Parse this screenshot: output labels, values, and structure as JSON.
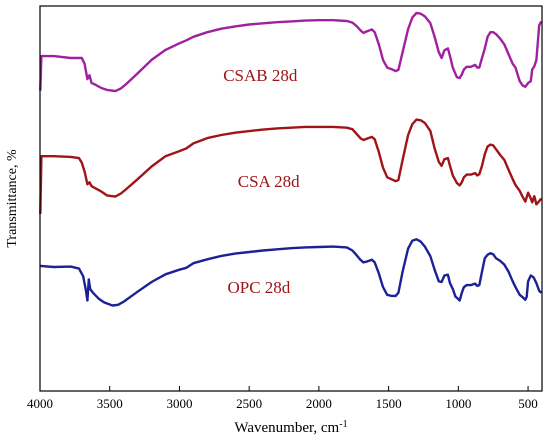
{
  "chart_data": {
    "type": "line",
    "xlabel": "Wavenumber, cm",
    "xlabel_sup": "-1",
    "ylabel": "Transmittance, %",
    "xlim": [
      4000,
      400
    ],
    "x_reversed": true,
    "xticks": [
      4000,
      3500,
      3000,
      2500,
      2000,
      1500,
      1000,
      500
    ],
    "y_ticks_shown": false,
    "ylim": [
      0,
      100
    ],
    "grid": false,
    "series": [
      {
        "name": "CSAB 28d",
        "color": "#a020a0",
        "points": [
          [
            3998,
            78
          ],
          [
            3990,
            87
          ],
          [
            3900,
            87
          ],
          [
            3780,
            86.5
          ],
          [
            3700,
            86.5
          ],
          [
            3680,
            85
          ],
          [
            3660,
            81
          ],
          [
            3645,
            82
          ],
          [
            3630,
            80
          ],
          [
            3600,
            79.5
          ],
          [
            3560,
            78.7
          ],
          [
            3520,
            78.2
          ],
          [
            3460,
            77.9
          ],
          [
            3420,
            78.6
          ],
          [
            3380,
            79.8
          ],
          [
            3300,
            82.5
          ],
          [
            3200,
            86
          ],
          [
            3100,
            88.6
          ],
          [
            3000,
            90.3
          ],
          [
            2950,
            91.1
          ],
          [
            2900,
            92
          ],
          [
            2800,
            93.2
          ],
          [
            2700,
            94.1
          ],
          [
            2600,
            94.7
          ],
          [
            2500,
            95.2
          ],
          [
            2400,
            95.5
          ],
          [
            2300,
            95.8
          ],
          [
            2200,
            96
          ],
          [
            2100,
            96.2
          ],
          [
            2000,
            96.3
          ],
          [
            1900,
            96.3
          ],
          [
            1800,
            96.1
          ],
          [
            1760,
            95.7
          ],
          [
            1730,
            94.8
          ],
          [
            1700,
            93.6
          ],
          [
            1680,
            93
          ],
          [
            1650,
            93.5
          ],
          [
            1620,
            93.9
          ],
          [
            1600,
            93.2
          ],
          [
            1570,
            90
          ],
          [
            1540,
            86
          ],
          [
            1510,
            84
          ],
          [
            1480,
            83.6
          ],
          [
            1450,
            83.1
          ],
          [
            1430,
            83.4
          ],
          [
            1400,
            88
          ],
          [
            1360,
            94
          ],
          [
            1330,
            97
          ],
          [
            1300,
            98.2
          ],
          [
            1270,
            98
          ],
          [
            1240,
            97.3
          ],
          [
            1200,
            95.5
          ],
          [
            1170,
            92
          ],
          [
            1140,
            88
          ],
          [
            1120,
            86.5
          ],
          [
            1100,
            88.5
          ],
          [
            1075,
            89
          ],
          [
            1060,
            87
          ],
          [
            1040,
            84
          ],
          [
            1010,
            81.5
          ],
          [
            990,
            81.3
          ],
          [
            975,
            82.2
          ],
          [
            960,
            83.5
          ],
          [
            940,
            84.2
          ],
          [
            910,
            84.2
          ],
          [
            880,
            84.7
          ],
          [
            865,
            84
          ],
          [
            850,
            84
          ],
          [
            830,
            86.5
          ],
          [
            810,
            89
          ],
          [
            790,
            92
          ],
          [
            770,
            93.2
          ],
          [
            750,
            93.2
          ],
          [
            730,
            92.7
          ],
          [
            700,
            91.5
          ],
          [
            670,
            90
          ],
          [
            640,
            87.5
          ],
          [
            610,
            85
          ],
          [
            590,
            84
          ],
          [
            560,
            80.5
          ],
          [
            540,
            79.4
          ],
          [
            520,
            79
          ],
          [
            500,
            80
          ],
          [
            480,
            80.5
          ],
          [
            470,
            83.5
          ],
          [
            455,
            84.3
          ],
          [
            440,
            86
          ],
          [
            420,
            95
          ],
          [
            405,
            96
          ]
        ]
      },
      {
        "name": "CSA 28d",
        "color": "#a01418",
        "points": [
          [
            3998,
            46
          ],
          [
            3990,
            61
          ],
          [
            3900,
            61
          ],
          [
            3780,
            60.8
          ],
          [
            3720,
            60.5
          ],
          [
            3700,
            59.3
          ],
          [
            3680,
            57
          ],
          [
            3660,
            53.7
          ],
          [
            3645,
            54.2
          ],
          [
            3630,
            53.2
          ],
          [
            3600,
            52.6
          ],
          [
            3560,
            51.8
          ],
          [
            3520,
            50.8
          ],
          [
            3460,
            50.5
          ],
          [
            3420,
            51.3
          ],
          [
            3380,
            52.5
          ],
          [
            3300,
            55
          ],
          [
            3200,
            58.3
          ],
          [
            3100,
            61
          ],
          [
            3000,
            62.3
          ],
          [
            2950,
            63
          ],
          [
            2900,
            64.3
          ],
          [
            2800,
            65.7
          ],
          [
            2700,
            66.5
          ],
          [
            2600,
            67.1
          ],
          [
            2500,
            67.5
          ],
          [
            2400,
            67.9
          ],
          [
            2300,
            68.2
          ],
          [
            2200,
            68.4
          ],
          [
            2100,
            68.6
          ],
          [
            2000,
            68.6
          ],
          [
            1900,
            68.6
          ],
          [
            1800,
            68.4
          ],
          [
            1760,
            68
          ],
          [
            1730,
            66.8
          ],
          [
            1700,
            65.6
          ],
          [
            1680,
            65.2
          ],
          [
            1650,
            65.6
          ],
          [
            1620,
            66
          ],
          [
            1600,
            65.4
          ],
          [
            1570,
            62
          ],
          [
            1540,
            58
          ],
          [
            1510,
            55.5
          ],
          [
            1480,
            55
          ],
          [
            1450,
            54.5
          ],
          [
            1430,
            54.8
          ],
          [
            1400,
            60
          ],
          [
            1360,
            66.5
          ],
          [
            1330,
            69.3
          ],
          [
            1300,
            70.5
          ],
          [
            1270,
            70.3
          ],
          [
            1240,
            69.6
          ],
          [
            1200,
            67.5
          ],
          [
            1170,
            63
          ],
          [
            1140,
            59.5
          ],
          [
            1120,
            58.5
          ],
          [
            1100,
            60.2
          ],
          [
            1075,
            60.5
          ],
          [
            1060,
            58.5
          ],
          [
            1040,
            56
          ],
          [
            1010,
            54
          ],
          [
            990,
            53.4
          ],
          [
            975,
            54.2
          ],
          [
            960,
            55.5
          ],
          [
            940,
            56.2
          ],
          [
            910,
            56.2
          ],
          [
            880,
            56.6
          ],
          [
            865,
            56
          ],
          [
            850,
            56.3
          ],
          [
            830,
            58.5
          ],
          [
            810,
            61.5
          ],
          [
            790,
            63.5
          ],
          [
            770,
            64
          ],
          [
            750,
            63.8
          ],
          [
            730,
            62.8
          ],
          [
            700,
            61.3
          ],
          [
            670,
            60
          ],
          [
            640,
            57.5
          ],
          [
            610,
            55
          ],
          [
            590,
            53.5
          ],
          [
            560,
            52
          ],
          [
            540,
            50.5
          ],
          [
            520,
            49.2
          ],
          [
            500,
            51.5
          ],
          [
            480,
            50
          ],
          [
            470,
            49
          ],
          [
            455,
            50.6
          ],
          [
            440,
            48.5
          ],
          [
            420,
            49.3
          ],
          [
            405,
            50
          ]
        ]
      },
      {
        "name": "OPC 28d",
        "color": "#1c2196",
        "points": [
          [
            3998,
            32.5
          ],
          [
            3900,
            32.2
          ],
          [
            3780,
            32.3
          ],
          [
            3720,
            31.8
          ],
          [
            3690,
            29.8
          ],
          [
            3670,
            26
          ],
          [
            3660,
            23.5
          ],
          [
            3650,
            29
          ],
          [
            3640,
            26.5
          ],
          [
            3620,
            25.5
          ],
          [
            3580,
            24
          ],
          [
            3540,
            23
          ],
          [
            3480,
            22.2
          ],
          [
            3440,
            22.4
          ],
          [
            3400,
            23.2
          ],
          [
            3300,
            25.8
          ],
          [
            3200,
            28.3
          ],
          [
            3100,
            30.3
          ],
          [
            3000,
            31.5
          ],
          [
            2950,
            32
          ],
          [
            2900,
            33.2
          ],
          [
            2800,
            34.2
          ],
          [
            2700,
            35.1
          ],
          [
            2600,
            35.7
          ],
          [
            2500,
            36.1
          ],
          [
            2400,
            36.5
          ],
          [
            2300,
            36.8
          ],
          [
            2200,
            37.1
          ],
          [
            2100,
            37.3
          ],
          [
            2000,
            37.4
          ],
          [
            1900,
            37.5
          ],
          [
            1800,
            37.3
          ],
          [
            1760,
            36.5
          ],
          [
            1730,
            35.3
          ],
          [
            1700,
            34
          ],
          [
            1680,
            33.4
          ],
          [
            1650,
            33.7
          ],
          [
            1620,
            34.1
          ],
          [
            1600,
            33.4
          ],
          [
            1570,
            30.5
          ],
          [
            1540,
            27
          ],
          [
            1510,
            25
          ],
          [
            1480,
            24.7
          ],
          [
            1450,
            24.7
          ],
          [
            1430,
            25.5
          ],
          [
            1400,
            31
          ],
          [
            1360,
            37
          ],
          [
            1330,
            39
          ],
          [
            1300,
            39.4
          ],
          [
            1270,
            38.8
          ],
          [
            1240,
            37.5
          ],
          [
            1200,
            35
          ],
          [
            1170,
            31.5
          ],
          [
            1140,
            28.5
          ],
          [
            1120,
            28.3
          ],
          [
            1100,
            30
          ],
          [
            1075,
            30.2
          ],
          [
            1060,
            28
          ],
          [
            1040,
            26.5
          ],
          [
            1020,
            24.5
          ],
          [
            1010,
            24.2
          ],
          [
            990,
            23.5
          ],
          [
            975,
            25.5
          ],
          [
            960,
            27
          ],
          [
            940,
            27.5
          ],
          [
            910,
            27.5
          ],
          [
            880,
            27.9
          ],
          [
            865,
            27.3
          ],
          [
            850,
            27.5
          ],
          [
            830,
            31
          ],
          [
            810,
            34.5
          ],
          [
            790,
            35.4
          ],
          [
            770,
            35.8
          ],
          [
            750,
            35.5
          ],
          [
            730,
            34.5
          ],
          [
            700,
            33.8
          ],
          [
            670,
            32.8
          ],
          [
            640,
            31
          ],
          [
            610,
            28.5
          ],
          [
            590,
            27
          ],
          [
            560,
            25
          ],
          [
            540,
            24.4
          ],
          [
            520,
            23.7
          ],
          [
            510,
            24.5
          ],
          [
            500,
            28.5
          ],
          [
            480,
            30
          ],
          [
            460,
            29.5
          ],
          [
            440,
            28
          ],
          [
            420,
            26
          ],
          [
            405,
            25.5
          ]
        ]
      }
    ],
    "annotations": [
      {
        "text": "CSAB 28d",
        "x": 2420,
        "y": 80.5,
        "color": "#a01418"
      },
      {
        "text": "CSA 28d",
        "x": 2360,
        "y": 53,
        "color": "#a01418"
      },
      {
        "text": "OPC 28d",
        "x": 2430,
        "y": 25.5,
        "color": "#a01418"
      }
    ]
  }
}
